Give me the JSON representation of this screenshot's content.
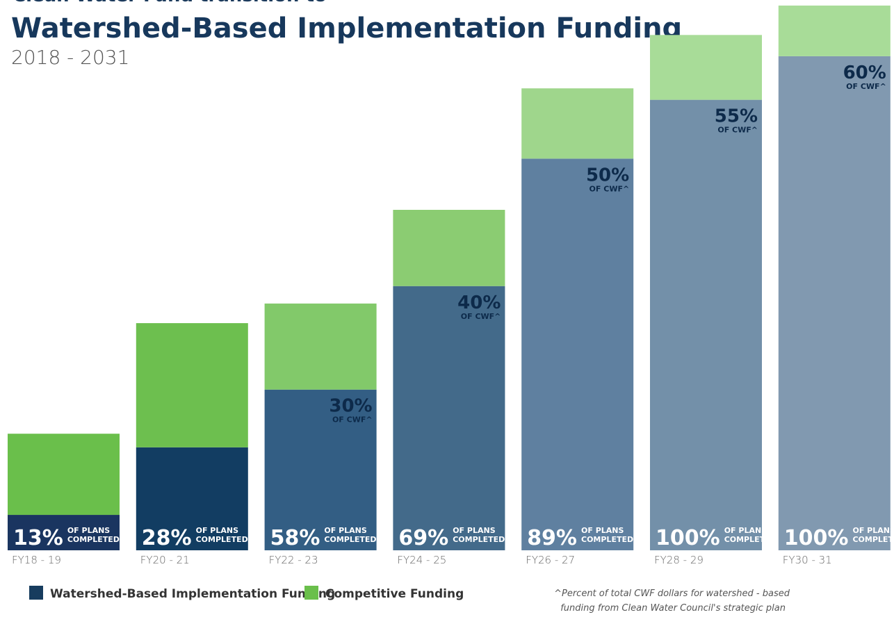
{
  "chart_data": {
    "type": "stacked-bar",
    "supertitle": "Clean Water Fund transition to",
    "title": "Watershed-Based Implementation Funding",
    "subtitle": "2018 - 2031",
    "categories": [
      "FY18 - 19",
      "FY20 - 21",
      "FY22 - 23",
      "FY24 - 25",
      "FY26 - 27",
      "FY28 - 29",
      "FY30 - 31"
    ],
    "ylim": [
      0,
      100
    ],
    "series": [
      {
        "name": "Watershed-Based Implementation Funding",
        "color": "#173c5e",
        "colors": [
          "#1a3560",
          "#123d62",
          "#335e84",
          "#436a8a",
          "#5f80a0",
          "#7390a9",
          "#8199b0"
        ],
        "values": [
          6.5,
          18.9,
          29.5,
          48.5,
          71.9,
          82.7,
          90.7
        ]
      },
      {
        "name": "Competitive Funding",
        "color": "#6abf4b",
        "colors": [
          "#6abf4b",
          "#6dbf4f",
          "#82c96a",
          "#8bcc72",
          "#9fd68c",
          "#a8dc98",
          "#a8dc98"
        ],
        "values": [
          14.9,
          22.8,
          15.8,
          14.0,
          12.9,
          11.9,
          9.3
        ]
      }
    ],
    "plans_labels": [
      "13%",
      "28%",
      "58%",
      "69%",
      "89%",
      "100%",
      "100%"
    ],
    "plans_caption": [
      "OF PLANS",
      "COMPLETED"
    ],
    "cwf_labels": [
      null,
      null,
      "30%",
      "40%",
      "50%",
      "55%",
      "60%"
    ],
    "cwf_caption": "OF CWF^",
    "footnote": [
      "^Percent of total CWF dollars for watershed - based",
      "funding from Clean Water Council's strategic plan"
    ]
  }
}
